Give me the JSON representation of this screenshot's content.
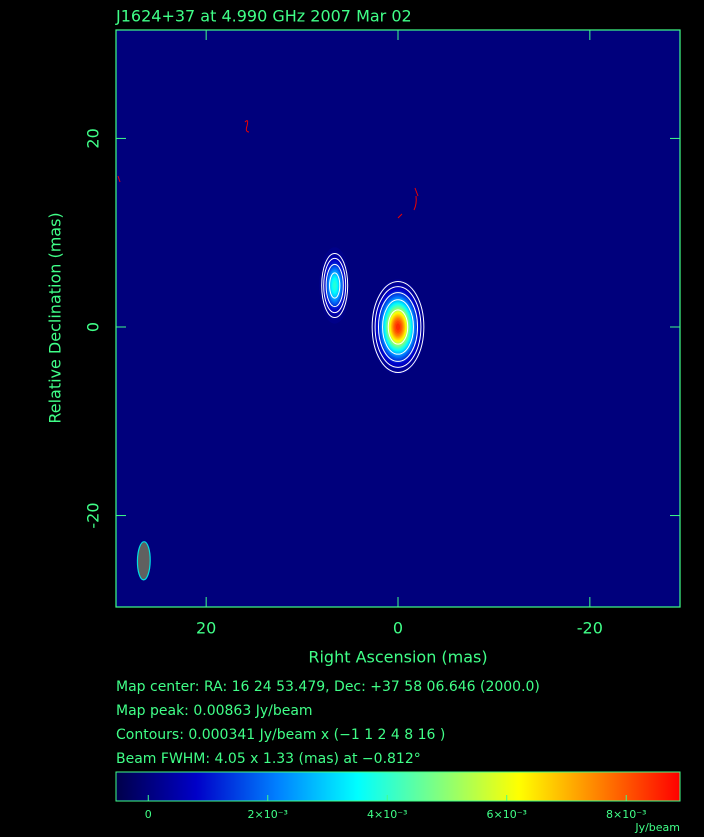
{
  "chart_data": {
    "type": "image",
    "title": "J1624+37 at 4.990 GHz 2007 Mar 02",
    "xlabel": "Right Ascension  (mas)",
    "ylabel": "Relative Declination  (mas)",
    "xlim": [
      29.4,
      -29.4
    ],
    "ylim": [
      -29.7,
      31.5
    ],
    "xticks": [
      20,
      0,
      -20
    ],
    "yticks": [
      -20,
      0,
      20
    ],
    "components": [
      {
        "x": 0,
        "y": 0,
        "peak": 0.00863,
        "sigma_x": 1.06,
        "sigma_y": 1.9
      },
      {
        "x": 6.6,
        "y": 4.4,
        "peak": 0.004,
        "sigma_x": 0.61,
        "sigma_y": 1.53
      }
    ],
    "beam": {
      "x": 26.5,
      "y": -24.8,
      "bmaj": 4.05,
      "bmin": 1.33,
      "pa": -0.812
    },
    "contour_base": 0.000341,
    "contour_levels": [
      -1,
      1,
      2,
      4,
      8,
      16
    ],
    "colormap": [
      "#00004a",
      "#0000c8",
      "#0080ff",
      "#00ffff",
      "#80ff80",
      "#ffff00",
      "#ff8000",
      "#ff0000"
    ],
    "clim": [
      -0.00054,
      0.0089
    ],
    "cticks": [
      0,
      {
        "value": 0.002,
        "label": "2×10⁻³"
      },
      {
        "value": 0.004,
        "label": "4×10⁻³"
      },
      {
        "value": 0.006,
        "label": "6×10⁻³"
      },
      {
        "value": 0.008,
        "label": "8×10⁻³"
      }
    ],
    "cunit": "Jy/beam",
    "notes": [
      "Map center:  RA: 16 24 53.479,  Dec: +37 58 06.646 (2000.0)",
      "Map peak: 0.00863 Jy/beam",
      "Contours: 0.000341 Jy/beam x (−1 1 2 4 8 16 )",
      "Beam FWHM: 4.05 x 1.33 (mas) at −0.812°"
    ]
  }
}
